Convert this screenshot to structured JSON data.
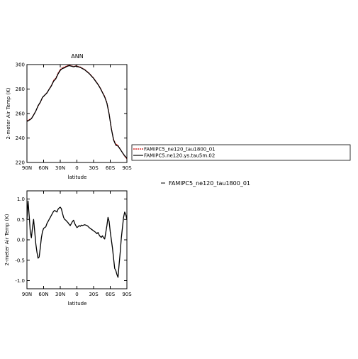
{
  "chart_data": [
    {
      "type": "line",
      "title": "ANN",
      "xlabel": "latitude",
      "ylabel": "2-meter Air Temp (K)",
      "xlim": [
        90,
        -90
      ],
      "ylim": [
        220,
        300
      ],
      "xticks": [
        90,
        60,
        30,
        0,
        -30,
        -60,
        -90
      ],
      "xtick_labels": [
        "90N",
        "60N",
        "30N",
        "0",
        "30S",
        "60S",
        "90S"
      ],
      "yticks": [
        220,
        240,
        260,
        280,
        300
      ],
      "ytick_labels": [
        "220",
        "240",
        "260",
        "280",
        "300"
      ],
      "legend_placement": "right",
      "series": [
        {
          "name": "FAMIPC5_ne120_tau1800_01",
          "color": "#cc0000",
          "dashed": true,
          "x": [
            90,
            86,
            82,
            78,
            74,
            70,
            66,
            62,
            58,
            54,
            50,
            46,
            42,
            38,
            34,
            30,
            26,
            22,
            18,
            14,
            10,
            6,
            2,
            -2,
            -6,
            -10,
            -14,
            -18,
            -22,
            -26,
            -30,
            -34,
            -38,
            -42,
            -46,
            -50,
            -54,
            -58,
            -62,
            -66,
            -70,
            -74,
            -78,
            -82,
            -86,
            -90
          ],
          "y": [
            254,
            255,
            256,
            259,
            262,
            266,
            269,
            273,
            275,
            277,
            280,
            283,
            287,
            289,
            293,
            296,
            297.5,
            298,
            299,
            299.5,
            299,
            298.5,
            299,
            298.5,
            298,
            297,
            296,
            294.5,
            293,
            291,
            289,
            286.5,
            284,
            281,
            277.5,
            274,
            269,
            260,
            248,
            239,
            235,
            234,
            231,
            228,
            225,
            223
          ]
        },
        {
          "name": "FAMIPC5.ne120.ys.tau5m.02",
          "color": "#000000",
          "dashed": false,
          "x": [
            90,
            86,
            82,
            78,
            74,
            70,
            66,
            62,
            58,
            54,
            50,
            46,
            42,
            38,
            34,
            30,
            26,
            22,
            18,
            14,
            10,
            6,
            2,
            -2,
            -6,
            -10,
            -14,
            -18,
            -22,
            -26,
            -30,
            -34,
            -38,
            -42,
            -46,
            -50,
            -54,
            -58,
            -62,
            -66,
            -70,
            -74,
            -78,
            -82,
            -86,
            -90
          ],
          "y": [
            253.5,
            254.5,
            255.8,
            258.7,
            262,
            266.3,
            269.2,
            273.2,
            275,
            276.8,
            279.8,
            282.6,
            286.4,
            288.4,
            292.3,
            295.3,
            296.8,
            297.4,
            298.5,
            299.1,
            298.7,
            298.2,
            298.7,
            298.2,
            297.7,
            296.7,
            295.7,
            294.2,
            292.7,
            290.7,
            288.7,
            286.2,
            283.7,
            280.7,
            277.1,
            273.5,
            268.5,
            259.5,
            247.5,
            238.4,
            234.2,
            233.4,
            230.8,
            228,
            225.5,
            223.5
          ]
        }
      ]
    },
    {
      "type": "line",
      "title": "",
      "xlabel": "latitude",
      "ylabel": "2-meter Air Temp (K)",
      "xlim": [
        90,
        -90
      ],
      "ylim": [
        -1.2,
        1.2
      ],
      "xticks": [
        90,
        60,
        30,
        0,
        -30,
        -60,
        -90
      ],
      "xtick_labels": [
        "90N",
        "60N",
        "30N",
        "0",
        "30S",
        "60S",
        "90S"
      ],
      "yticks": [
        -1.0,
        -0.5,
        0.0,
        0.5,
        1.0
      ],
      "ytick_labels": [
        "-1.0",
        "-0.5",
        "0.0",
        "0.5",
        "1.0"
      ],
      "legend_placement": "right",
      "series": [
        {
          "name": "FAMIPC5_ne120_tau1800_01",
          "color": "#000000",
          "dashed": false,
          "x": [
            90,
            88,
            86,
            84,
            82,
            80,
            78,
            76,
            74,
            72,
            70,
            68,
            66,
            64,
            62,
            60,
            58,
            56,
            54,
            52,
            50,
            48,
            46,
            44,
            42,
            40,
            38,
            36,
            34,
            32,
            30,
            28,
            26,
            24,
            22,
            20,
            18,
            16,
            14,
            12,
            10,
            8,
            6,
            4,
            2,
            0,
            -2,
            -4,
            -6,
            -8,
            -10,
            -12,
            -14,
            -16,
            -18,
            -20,
            -22,
            -24,
            -26,
            -28,
            -30,
            -32,
            -34,
            -36,
            -38,
            -40,
            -42,
            -44,
            -46,
            -48,
            -50,
            -52,
            -54,
            -56,
            -58,
            -60,
            -62,
            -64,
            -66,
            -68,
            -70,
            -72,
            -74,
            -76,
            -78,
            -80,
            -82,
            -84,
            -86,
            -88,
            -90
          ],
          "y": [
            0.5,
            0.95,
            0.6,
            0.2,
            0.05,
            0.3,
            0.5,
            0.2,
            -0.1,
            -0.3,
            -0.45,
            -0.42,
            -0.2,
            0.05,
            0.2,
            0.28,
            0.3,
            0.32,
            0.4,
            0.45,
            0.5,
            0.55,
            0.6,
            0.65,
            0.7,
            0.72,
            0.7,
            0.68,
            0.75,
            0.78,
            0.8,
            0.76,
            0.65,
            0.55,
            0.5,
            0.48,
            0.45,
            0.42,
            0.38,
            0.35,
            0.4,
            0.45,
            0.48,
            0.4,
            0.35,
            0.3,
            0.32,
            0.35,
            0.33,
            0.36,
            0.35,
            0.36,
            0.37,
            0.36,
            0.35,
            0.33,
            0.3,
            0.28,
            0.26,
            0.24,
            0.22,
            0.2,
            0.18,
            0.15,
            0.18,
            0.12,
            0.08,
            0.06,
            0.1,
            0.05,
            0.02,
            0.18,
            0.35,
            0.55,
            0.45,
            0.2,
            0.0,
            -0.2,
            -0.45,
            -0.7,
            -0.75,
            -0.85,
            -0.92,
            -0.6,
            -0.3,
            0.05,
            0.3,
            0.55,
            0.68,
            0.62,
            0.5
          ]
        }
      ]
    }
  ]
}
